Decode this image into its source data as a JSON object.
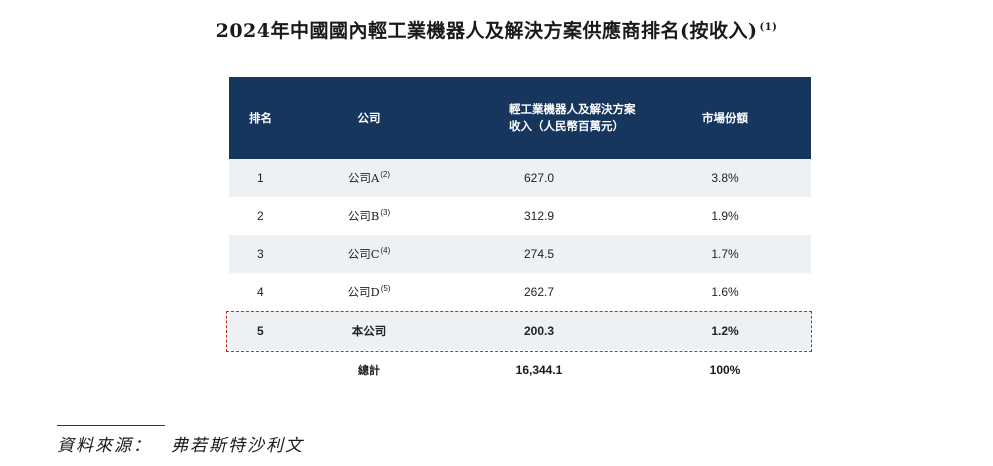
{
  "title": {
    "text": "2024年中國國內輕工業機器人及解決方案供應商排名(按收入)",
    "note": "(1)"
  },
  "table": {
    "headers": {
      "rank": "排名",
      "company": "公司",
      "revenue_line1": "輕工業機器人及解決方案",
      "revenue_line2": "收入（人民幣百萬元）",
      "share": "市場份額"
    },
    "rows": [
      {
        "rank": "1",
        "company": "公司A",
        "note": "(2)",
        "revenue": "627.0",
        "share": "3.8%"
      },
      {
        "rank": "2",
        "company": "公司B",
        "note": "(3)",
        "revenue": "312.9",
        "share": "1.9%"
      },
      {
        "rank": "3",
        "company": "公司C",
        "note": "(4)",
        "revenue": "274.5",
        "share": "1.7%"
      },
      {
        "rank": "4",
        "company": "公司D",
        "note": "(5)",
        "revenue": "262.7",
        "share": "1.6%"
      },
      {
        "rank": "5",
        "company": "本公司",
        "note": "",
        "revenue": "200.3",
        "share": "1.2%"
      }
    ],
    "total": {
      "label": "總計",
      "revenue": "16,344.1",
      "share": "100%"
    }
  },
  "source": "資料來源：　弗若斯特沙利文",
  "colors": {
    "header_bg": "#17365e",
    "row_shade": "#eef1f4",
    "highlight_border": "#e02020"
  }
}
